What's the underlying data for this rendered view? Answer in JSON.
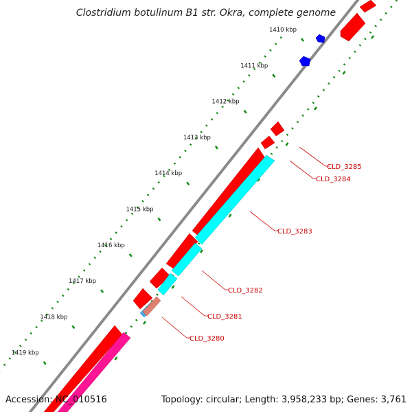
{
  "title": "Clostridium botulinum B1 str. Okra, complete genome",
  "footer": {
    "accession": "Accession: NC_010516",
    "summary": "Topology: circular; Length: 3,958,233 bp; Genes: 3,761"
  },
  "ticks": [
    {
      "label": "1410 kbp",
      "kbp": 1410
    },
    {
      "label": "1411 kbp",
      "kbp": 1411
    },
    {
      "label": "1412 kbp",
      "kbp": 1412
    },
    {
      "label": "1413 kbp",
      "kbp": 1413
    },
    {
      "label": "1414 kbp",
      "kbp": 1414
    },
    {
      "label": "1415 kbp",
      "kbp": 1415
    },
    {
      "label": "1416 kbp",
      "kbp": 1416
    },
    {
      "label": "1417 kbp",
      "kbp": 1417
    },
    {
      "label": "1418 kbp",
      "kbp": 1418
    },
    {
      "label": "1419 kbp",
      "kbp": 1419
    }
  ],
  "gene_labels": [
    "CLD_3285",
    "CLD_3284",
    "CLD_3283",
    "CLD_3282",
    "CLD_3281",
    "CLD_3280"
  ],
  "colors": {
    "backbone": "#888888",
    "gene": "#ff0000",
    "cds": "#00ffff",
    "blue": "#0000ff",
    "pink": "#ff1493",
    "salmon": "#e08070",
    "steel": "#4aa8e0",
    "tick": "#118811",
    "label": "#cc0000"
  }
}
